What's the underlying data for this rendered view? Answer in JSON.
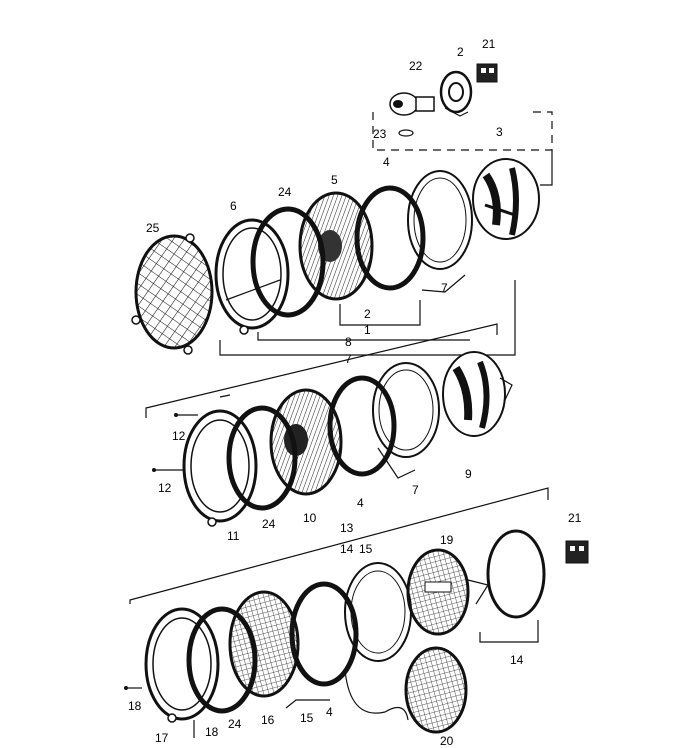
{
  "labels": {
    "p22": "22",
    "p2_top": "2",
    "p21_top": "21",
    "p23": "23",
    "p3": "3",
    "p4_top": "4",
    "p5": "5",
    "p24_top": "24",
    "p6": "6",
    "p25": "25",
    "p7_top": "7",
    "p2_mid": "2",
    "p1": "1",
    "p8": "8",
    "p7_mid": "7",
    "p12_a": "12",
    "p12_b": "12",
    "p9": "9",
    "p7_low": "7",
    "p4_mid": "4",
    "p10": "10",
    "p24_mid": "24",
    "p11": "11",
    "p21_low": "21",
    "p13": "13",
    "p14_a": "14",
    "p15_a": "15",
    "p19": "19",
    "p14_b": "14",
    "p18_a": "18",
    "p17": "17",
    "p18_b": "18",
    "p24_low": "24",
    "p16": "16",
    "p15_b": "15",
    "p4_low": "4",
    "p20": "20"
  }
}
